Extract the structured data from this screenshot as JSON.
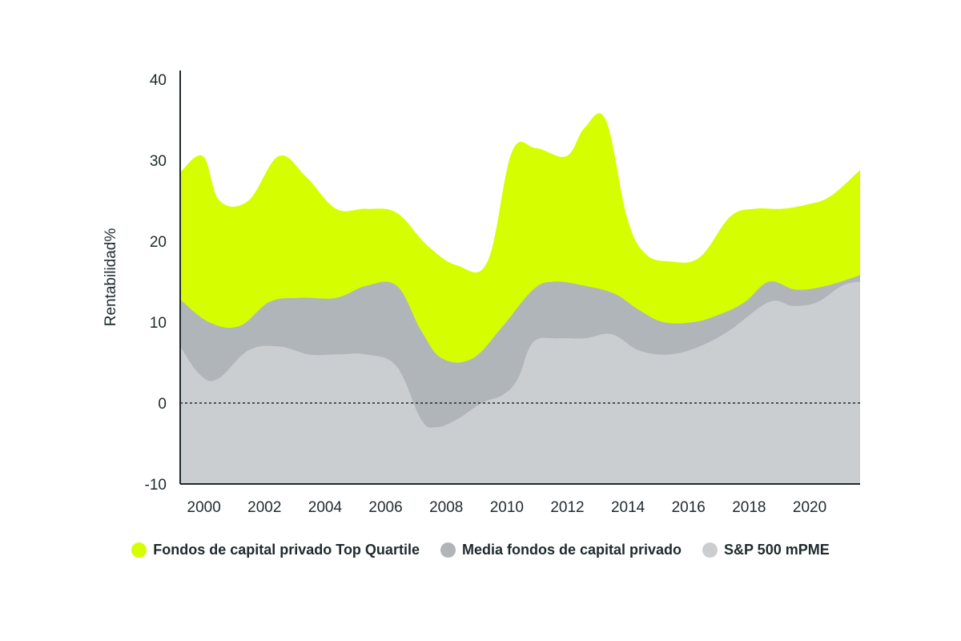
{
  "chart_data": {
    "type": "area",
    "ylabel": "Rentabilidad%",
    "xlabel": "",
    "ylim": [
      -10,
      40
    ],
    "yticks": [
      40,
      30,
      20,
      10,
      0,
      -10
    ],
    "xticks": [
      2000,
      2002,
      2004,
      2006,
      2008,
      2010,
      2012,
      2014,
      2016,
      2018,
      2020
    ],
    "xlim": [
      1999.85,
      2022.3
    ],
    "zero_line": "dotted",
    "legend_position": "bottom",
    "series": [
      {
        "name": "Fondos de capital privado Top Quartile",
        "color": "#d5ff00",
        "x": [
          1999.85,
          2000.6,
          2001.15,
          2002.1,
          2003.1,
          2004.0,
          2005.0,
          2006.0,
          2007.0,
          2008.0,
          2009.0,
          2010.0,
          2010.8,
          2011.6,
          2012.6,
          2013.2,
          2013.9,
          2014.6,
          2015.2,
          2016.0,
          2017.0,
          2018.0,
          2018.8,
          2019.7,
          2020.5,
          2021.3,
          2022.3
        ],
        "values": [
          28.5,
          30.5,
          25,
          25,
          30.5,
          28,
          24,
          24,
          23.5,
          19.5,
          17,
          17.5,
          31,
          31.5,
          30.5,
          34,
          35,
          23,
          18.5,
          17.5,
          18,
          23,
          24,
          24,
          24.5,
          25.5,
          28.8
        ]
      },
      {
        "name": "Media fondos de capital privado",
        "color": "#b0b5b9",
        "x": [
          1999.85,
          2000.8,
          2001.8,
          2002.8,
          2003.8,
          2005.0,
          2006.0,
          2007.0,
          2007.8,
          2008.5,
          2009.5,
          2010.5,
          2011.5,
          2012.2,
          2013.2,
          2014.2,
          2015.0,
          2015.8,
          2016.8,
          2017.7,
          2018.5,
          2019.3,
          2020.2,
          2021.2,
          2022.3
        ],
        "values": [
          12.8,
          10,
          9.5,
          12.5,
          13,
          13,
          14.5,
          14.5,
          9,
          5.5,
          5.5,
          9.5,
          14,
          15,
          14.5,
          13.5,
          11.5,
          10,
          10,
          11,
          12.5,
          15,
          14,
          14.5,
          15.8
        ]
      },
      {
        "name": "S&P 500 mPME",
        "color": "#cbced1",
        "x": [
          1999.85,
          2000.5,
          2001.1,
          2002.1,
          2003.1,
          2004.1,
          2005.0,
          2006.0,
          2007.0,
          2007.8,
          2008.3,
          2009.0,
          2009.8,
          2010.5,
          2011.0,
          2011.5,
          2012.3,
          2013.2,
          2014.1,
          2015.0,
          2016.0,
          2017.0,
          2018.0,
          2019.3,
          2020.1,
          2020.9,
          2021.7,
          2022.3
        ],
        "values": [
          7,
          3.5,
          3,
          6.5,
          7,
          6,
          6,
          6,
          4.5,
          -2,
          -3,
          -2,
          0,
          1,
          3,
          7.5,
          8,
          8,
          8.5,
          6.5,
          6,
          7,
          9,
          12.5,
          12,
          12.5,
          14.5,
          15
        ]
      }
    ]
  }
}
